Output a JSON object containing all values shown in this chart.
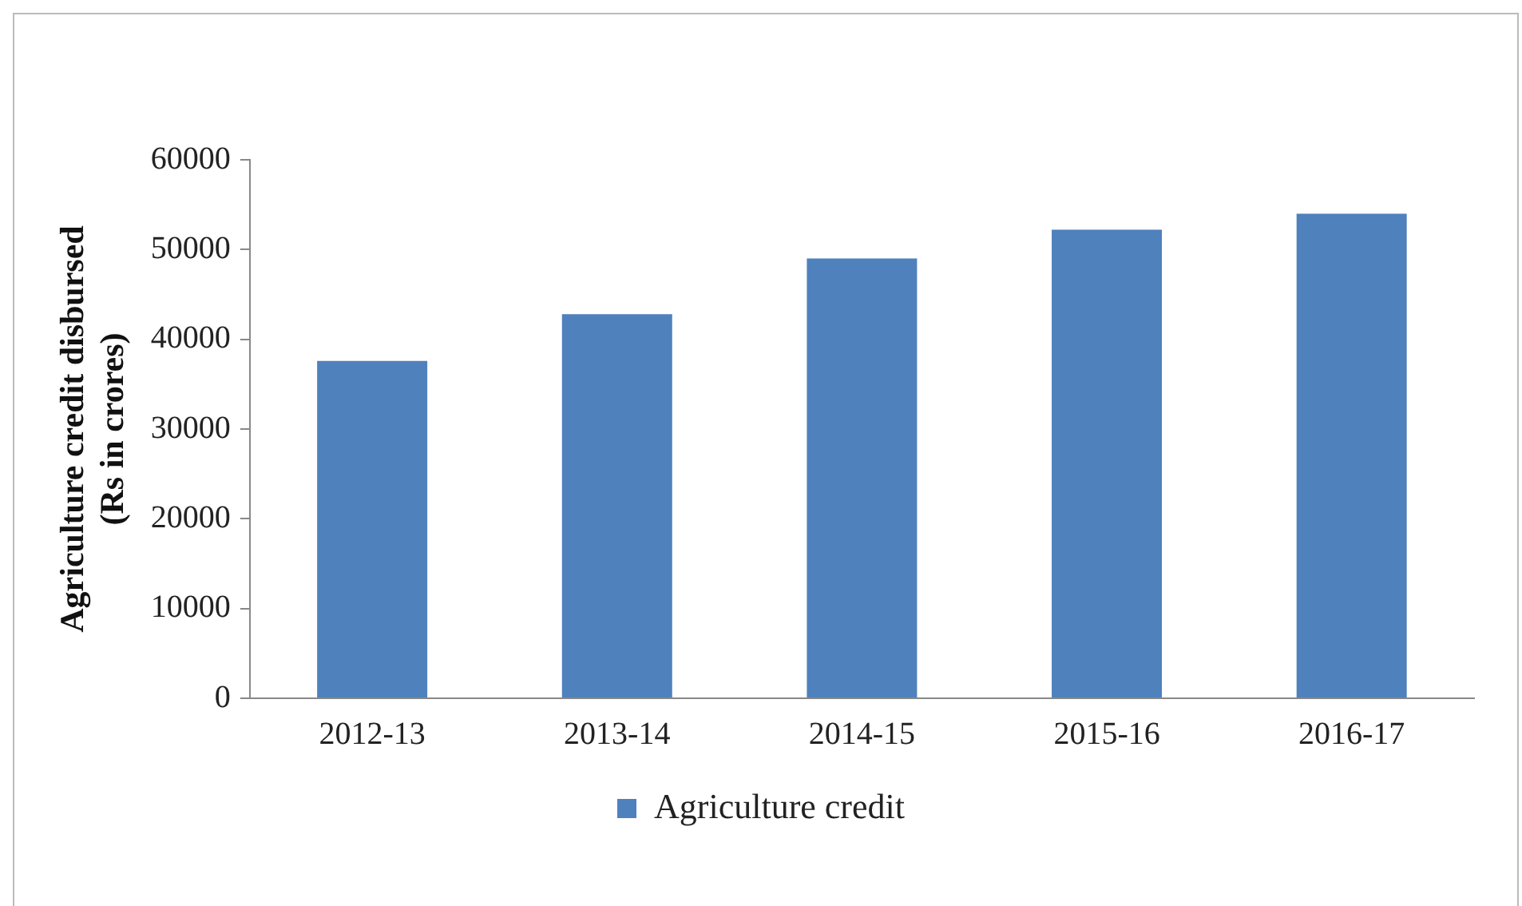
{
  "chart_data": {
    "type": "bar",
    "ylabel": "Agriculture credit disbursed\n(Rs in crores)",
    "categories": [
      "2012-13",
      "2013-14",
      "2014-15",
      "2015-16",
      "2016-17"
    ],
    "series": [
      {
        "name": "Agriculture credit",
        "color": "#4f81bd",
        "values": [
          37600,
          42800,
          49000,
          52200,
          54000
        ]
      }
    ],
    "ylim": [
      0,
      60000
    ],
    "yticks": [
      0,
      10000,
      20000,
      30000,
      40000,
      50000,
      60000
    ],
    "grid": false,
    "legend": "bottom"
  }
}
